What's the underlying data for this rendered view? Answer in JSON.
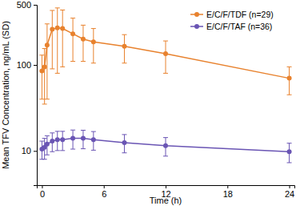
{
  "chart_data": {
    "type": "line",
    "x_label": "Time (h)",
    "y_label": "Mean TFV Concentration, ng/mL (SD)",
    "x": [
      0,
      0.25,
      0.5,
      1,
      1.5,
      2,
      3,
      4,
      5,
      8,
      12,
      24
    ],
    "series": [
      {
        "name": "E/C/F/TDF (n=29)",
        "color": "#e8822e",
        "marker": "circle",
        "values": [
          85,
          95,
          170,
          260,
          270,
          265,
          230,
          200,
          185,
          165,
          135,
          70
        ],
        "errors": [
          45,
          60,
          130,
          170,
          190,
          170,
          120,
          90,
          80,
          60,
          55,
          25
        ]
      },
      {
        "name": "E/C/F/TAF (n=36)",
        "color": "#6a55b4",
        "marker": "circle",
        "values": [
          10.5,
          11,
          12,
          13,
          13.5,
          13.5,
          14,
          14,
          13.5,
          12.5,
          11.5,
          9.8
        ],
        "errors": [
          2.5,
          3,
          3,
          3.2,
          3.4,
          3.4,
          3.5,
          3.4,
          3.3,
          3,
          2.8,
          2.5
        ]
      }
    ],
    "xlim": [
      -0.5,
      24.5
    ],
    "ylim": [
      4,
      500
    ],
    "xticks": [
      0,
      6,
      12,
      18,
      24
    ],
    "yticks": [
      10,
      100,
      500
    ],
    "log": "y",
    "legend": "upper right"
  }
}
